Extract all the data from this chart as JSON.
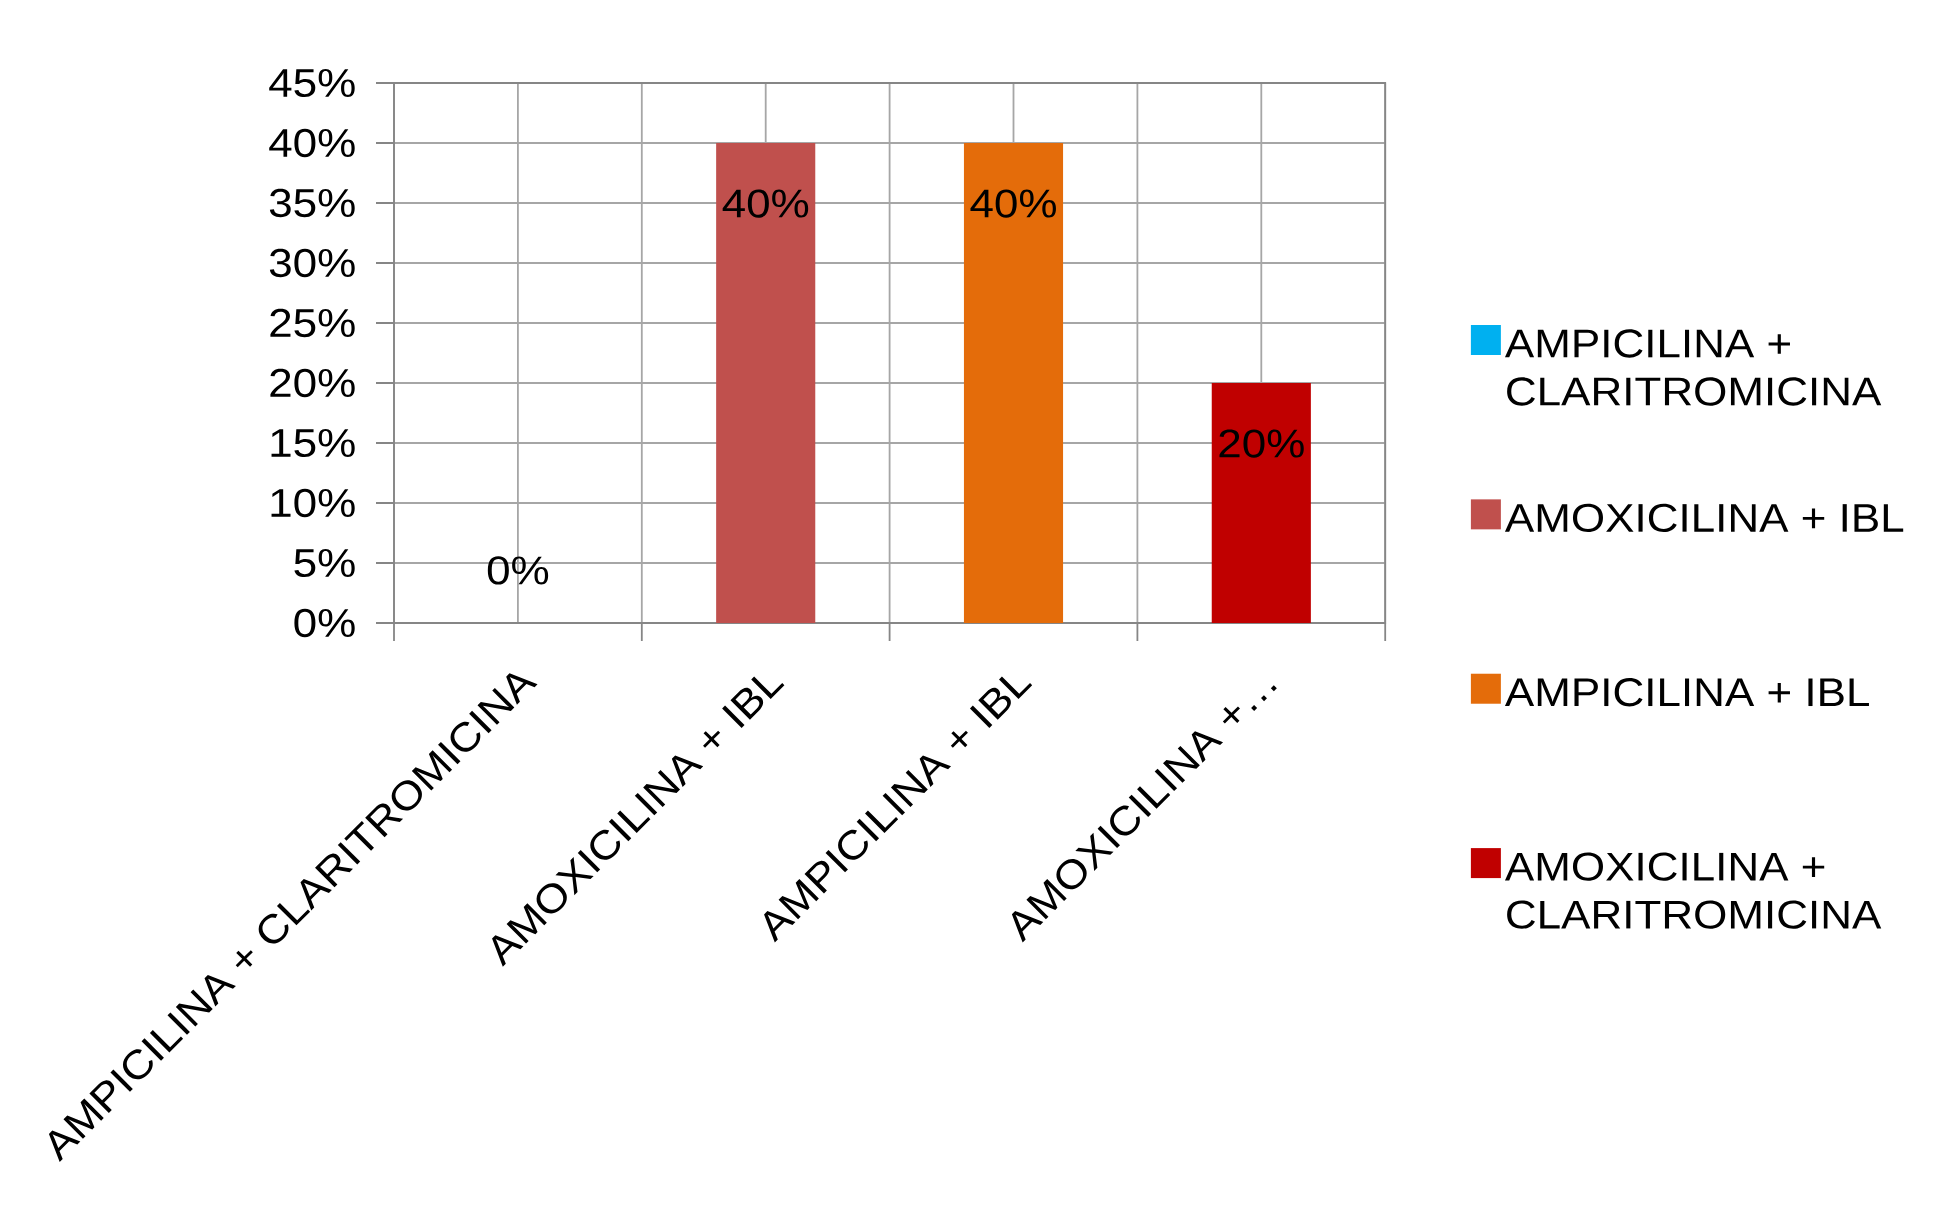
{
  "chart_data": {
    "type": "bar",
    "categories": [
      "AMPICILINA + CLARITROMICINA",
      "AMOXICILINA + IBL",
      "AMPICILINA + IBL",
      "AMOXICILINA +…"
    ],
    "series": [
      {
        "name": "AMPICILINA + CLARITROMICINA",
        "color": "#00b0f0",
        "values": [
          0,
          null,
          null,
          null
        ],
        "value_labels": [
          "0%",
          null,
          null,
          null
        ]
      },
      {
        "name": "AMOXICILINA + IBL",
        "color": "#c0504d",
        "values": [
          null,
          40,
          null,
          null
        ],
        "value_labels": [
          null,
          "40%",
          null,
          null
        ]
      },
      {
        "name": "AMPICILINA + IBL",
        "color": "#e46c0a",
        "values": [
          null,
          null,
          40,
          null
        ],
        "value_labels": [
          null,
          null,
          "40%",
          null
        ]
      },
      {
        "name": "AMOXICILINA + CLARITROMICINA",
        "color": "#c00000",
        "values": [
          null,
          null,
          null,
          20
        ],
        "value_labels": [
          null,
          null,
          null,
          "20%"
        ]
      }
    ],
    "ylim": [
      0,
      45
    ],
    "yticks": [
      {
        "value": 0,
        "label": "0%"
      },
      {
        "value": 5,
        "label": "5%"
      },
      {
        "value": 10,
        "label": "10%"
      },
      {
        "value": 15,
        "label": "15%"
      },
      {
        "value": 20,
        "label": "20%"
      },
      {
        "value": 25,
        "label": "25%"
      },
      {
        "value": 30,
        "label": "30%"
      },
      {
        "value": 35,
        "label": "35%"
      },
      {
        "value": 40,
        "label": "40%"
      },
      {
        "value": 45,
        "label": "45%"
      }
    ],
    "grid": true,
    "legend": "right"
  }
}
